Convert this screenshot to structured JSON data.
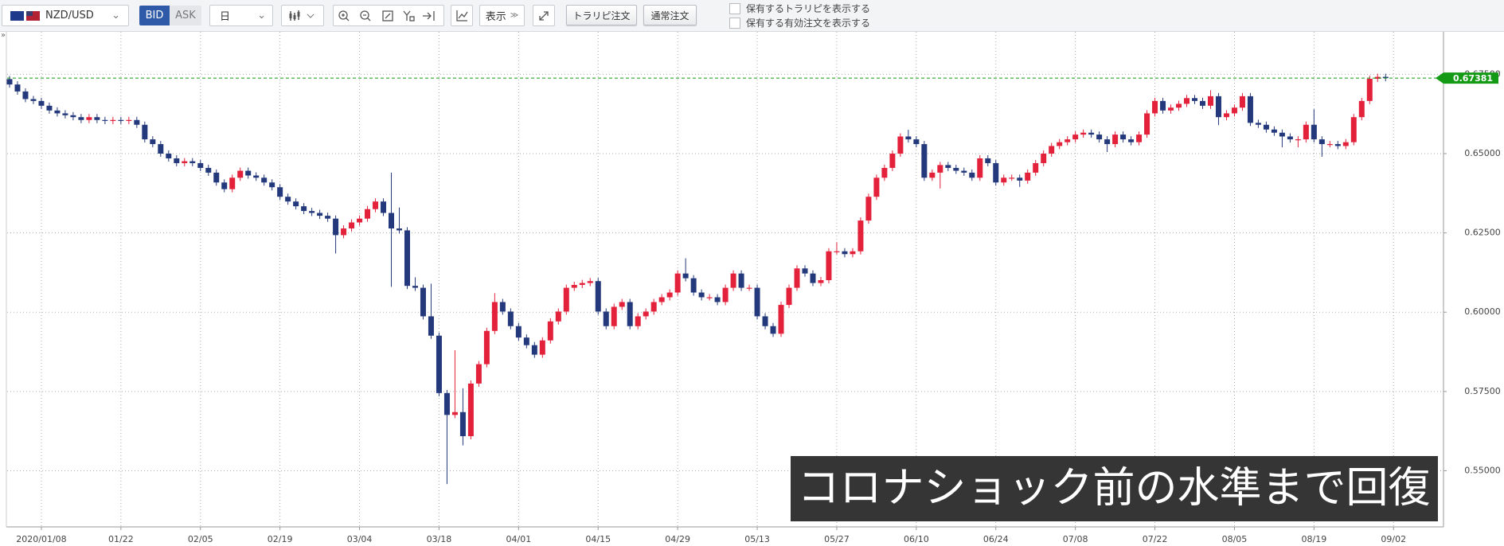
{
  "toolbar": {
    "symbol": "NZD/USD",
    "bid": "BID",
    "ask": "ASK",
    "timeframe": "日",
    "display": "表示",
    "trarepi_order": "トラリピ注文",
    "normal_order": "通常注文",
    "checkbox_1": "保有するトラリピを表示する",
    "checkbox_2": "保有する有効注文を表示する"
  },
  "sidebar_toggle": "»",
  "chart_data": {
    "type": "candlestick",
    "annotation": "コロナショック前の水準まで回復",
    "up_color": "#e3213b",
    "down_color": "#24397c",
    "grid": true,
    "last_price": 0.67381,
    "last_price_color": "#149a14",
    "ylim": [
      0.5328,
      0.6884
    ],
    "yticks": [
      {
        "value": 0.55,
        "label": "0.55000"
      },
      {
        "value": 0.575,
        "label": "0.57500"
      },
      {
        "value": 0.6,
        "label": "0.60000"
      },
      {
        "value": 0.625,
        "label": "0.62500"
      },
      {
        "value": 0.65,
        "label": "0.65000"
      },
      {
        "value": 0.675,
        "label": "0.67500"
      }
    ],
    "categories": [
      null,
      null,
      null,
      null,
      "2020/01/08",
      null,
      null,
      null,
      null,
      null,
      null,
      null,
      null,
      null,
      "01/22",
      null,
      null,
      null,
      null,
      null,
      null,
      null,
      null,
      null,
      "02/05",
      null,
      null,
      null,
      null,
      null,
      null,
      null,
      null,
      null,
      "02/19",
      null,
      null,
      null,
      null,
      null,
      null,
      null,
      null,
      null,
      "03/04",
      null,
      null,
      null,
      null,
      null,
      null,
      null,
      null,
      null,
      "03/18",
      null,
      null,
      null,
      null,
      null,
      null,
      null,
      null,
      null,
      "04/01",
      null,
      null,
      null,
      null,
      null,
      null,
      null,
      null,
      null,
      "04/15",
      null,
      null,
      null,
      null,
      null,
      null,
      null,
      null,
      null,
      "04/29",
      null,
      null,
      null,
      null,
      null,
      null,
      null,
      null,
      null,
      "05/13",
      null,
      null,
      null,
      null,
      null,
      null,
      null,
      null,
      null,
      "05/27",
      null,
      null,
      null,
      null,
      null,
      null,
      null,
      null,
      null,
      "06/10",
      null,
      null,
      null,
      null,
      null,
      null,
      null,
      null,
      null,
      "06/24",
      null,
      null,
      null,
      null,
      null,
      null,
      null,
      null,
      null,
      "07/08",
      null,
      null,
      null,
      null,
      null,
      null,
      null,
      null,
      null,
      "07/22",
      null,
      null,
      null,
      null,
      null,
      null,
      null,
      null,
      null,
      "08/05",
      null,
      null,
      null,
      null,
      null,
      null,
      null,
      null,
      null,
      "08/19",
      null,
      null,
      null,
      null,
      null,
      null,
      null,
      null,
      null,
      "09/02"
    ],
    "open": [
      0.6735,
      0.6718,
      0.6696,
      0.6672,
      0.6666,
      0.6651,
      0.6636,
      0.6627,
      0.6621,
      0.6615,
      0.6606,
      0.6615,
      0.6606,
      0.6603,
      0.6606,
      0.6603,
      0.6606,
      0.6591,
      0.6545,
      0.653,
      0.65,
      0.6485,
      0.647,
      0.6476,
      0.647,
      0.6455,
      0.644,
      0.6409,
      0.6388,
      0.6424,
      0.6446,
      0.6431,
      0.6424,
      0.6409,
      0.6394,
      0.6364,
      0.6349,
      0.6334,
      0.6319,
      0.6313,
      0.6304,
      0.6295,
      0.6243,
      0.6264,
      0.6283,
      0.6295,
      0.6325,
      0.6349,
      0.6313,
      0.6264,
      0.6258,
      0.6083,
      0.6077,
      0.5987,
      0.5926,
      0.5745,
      0.5676,
      0.5685,
      0.5609,
      0.5775,
      0.5836,
      0.5941,
      0.6032,
      0.6002,
      0.5956,
      0.592,
      0.5896,
      0.5866,
      0.5911,
      0.5971,
      0.6002,
      0.6077,
      0.6086,
      0.6092,
      0.6098,
      0.6002,
      0.5956,
      0.6017,
      0.6032,
      0.5956,
      0.5987,
      0.6002,
      0.6032,
      0.6047,
      0.6062,
      0.6122,
      0.6107,
      0.6062,
      0.6047,
      0.6047,
      0.6032,
      0.6077,
      0.6122,
      0.6077,
      0.6077,
      0.5987,
      0.5956,
      0.5932,
      0.6023,
      0.6077,
      0.6138,
      0.6122,
      0.6092,
      0.6101,
      0.6192,
      0.6192,
      0.6183,
      0.6192,
      0.6289,
      0.6364,
      0.6424,
      0.6455,
      0.65,
      0.6554,
      0.6545,
      0.653,
      0.6424,
      0.644,
      0.6464,
      0.6455,
      0.6446,
      0.644,
      0.6424,
      0.6485,
      0.647,
      0.6409,
      0.6424,
      0.6424,
      0.6415,
      0.644,
      0.647,
      0.65,
      0.6524,
      0.6536,
      0.6545,
      0.656,
      0.6566,
      0.656,
      0.6545,
      0.653,
      0.656,
      0.6545,
      0.6536,
      0.656,
      0.6627,
      0.6666,
      0.6636,
      0.6645,
      0.6657,
      0.6675,
      0.6666,
      0.6651,
      0.6681,
      0.6615,
      0.6627,
      0.6645,
      0.6681,
      0.6597,
      0.6591,
      0.6576,
      0.6566,
      0.6554,
      0.6545,
      0.6545,
      0.6591,
      0.6545,
      0.653,
      0.653,
      0.6524,
      0.6536,
      0.6615,
      0.6666,
      0.6736,
      0.6742,
      null
    ],
    "high": [
      0.6745,
      0.6728,
      0.6706,
      0.6682,
      0.6676,
      0.6661,
      0.6646,
      0.6637,
      0.6631,
      0.6625,
      0.6625,
      0.6625,
      0.6616,
      0.6616,
      0.6616,
      0.6616,
      0.6616,
      0.6601,
      0.6555,
      0.654,
      0.651,
      0.6495,
      0.6486,
      0.6486,
      0.648,
      0.6465,
      0.645,
      0.6419,
      0.6434,
      0.6456,
      0.6456,
      0.6441,
      0.6434,
      0.6419,
      0.6404,
      0.6374,
      0.6359,
      0.6344,
      0.6329,
      0.6323,
      0.6314,
      0.6305,
      0.6274,
      0.6293,
      0.6305,
      0.6335,
      0.6359,
      0.6359,
      0.644,
      0.633,
      0.6268,
      0.611,
      0.6087,
      0.609,
      0.5936,
      0.5755,
      0.588,
      0.576,
      0.5785,
      0.5846,
      0.5951,
      0.606,
      0.6042,
      0.6012,
      0.5966,
      0.593,
      0.5906,
      0.5921,
      0.5981,
      0.6012,
      0.6087,
      0.6096,
      0.6102,
      0.6108,
      0.6108,
      0.6012,
      0.6027,
      0.6042,
      0.6042,
      0.5997,
      0.6012,
      0.6042,
      0.6057,
      0.6072,
      0.6132,
      0.617,
      0.6117,
      0.6072,
      0.6057,
      0.6057,
      0.6087,
      0.6132,
      0.6132,
      0.6087,
      0.6087,
      0.5997,
      0.5966,
      0.6033,
      0.6087,
      0.6148,
      0.6148,
      0.6132,
      0.6111,
      0.6202,
      0.622,
      0.6202,
      0.6202,
      0.6299,
      0.6374,
      0.6434,
      0.6465,
      0.651,
      0.6564,
      0.6575,
      0.6555,
      0.654,
      0.645,
      0.6474,
      0.6474,
      0.6465,
      0.6456,
      0.645,
      0.6495,
      0.6495,
      0.648,
      0.6434,
      0.6434,
      0.6434,
      0.645,
      0.648,
      0.651,
      0.6534,
      0.6546,
      0.6555,
      0.657,
      0.6576,
      0.6576,
      0.657,
      0.6555,
      0.657,
      0.657,
      0.6555,
      0.657,
      0.6637,
      0.6676,
      0.6676,
      0.6655,
      0.6667,
      0.6685,
      0.6685,
      0.6676,
      0.67,
      0.6691,
      0.6637,
      0.6655,
      0.6691,
      0.6691,
      0.6607,
      0.6601,
      0.6586,
      0.6576,
      0.6564,
      0.6555,
      0.6601,
      0.664,
      0.6555,
      0.654,
      0.654,
      0.6546,
      0.6625,
      0.6676,
      0.6746,
      0.6752,
      0.6752,
      null
    ],
    "low": [
      0.6708,
      0.6686,
      0.6662,
      0.6656,
      0.6641,
      0.6626,
      0.6617,
      0.6611,
      0.6605,
      0.6596,
      0.6596,
      0.6596,
      0.6593,
      0.6593,
      0.6593,
      0.6593,
      0.6581,
      0.6535,
      0.652,
      0.649,
      0.6475,
      0.646,
      0.646,
      0.646,
      0.6445,
      0.643,
      0.6399,
      0.6378,
      0.6378,
      0.6414,
      0.6421,
      0.6414,
      0.6399,
      0.6384,
      0.6354,
      0.6339,
      0.6324,
      0.6309,
      0.6303,
      0.6294,
      0.6285,
      0.6185,
      0.6233,
      0.6254,
      0.6273,
      0.6285,
      0.6315,
      0.6303,
      0.608,
      0.6248,
      0.6073,
      0.6067,
      0.5977,
      0.5916,
      0.5735,
      0.5458,
      0.5666,
      0.558,
      0.5599,
      0.5765,
      0.5826,
      0.5931,
      0.5992,
      0.5946,
      0.591,
      0.5886,
      0.5856,
      0.5856,
      0.5901,
      0.5961,
      0.5992,
      0.6067,
      0.6076,
      0.6082,
      0.5992,
      0.5946,
      0.5946,
      0.6007,
      0.5946,
      0.5946,
      0.5977,
      0.5992,
      0.6022,
      0.6037,
      0.6052,
      0.6097,
      0.6052,
      0.6037,
      0.6037,
      0.6022,
      0.6022,
      0.6067,
      0.6067,
      0.6067,
      0.5977,
      0.5946,
      0.5922,
      0.5922,
      0.6013,
      0.6067,
      0.6112,
      0.6082,
      0.6082,
      0.6091,
      0.6182,
      0.6173,
      0.6173,
      0.6182,
      0.6279,
      0.6354,
      0.6414,
      0.6445,
      0.649,
      0.6535,
      0.652,
      0.6414,
      0.6414,
      0.639,
      0.6445,
      0.6436,
      0.643,
      0.6414,
      0.6414,
      0.646,
      0.6399,
      0.6399,
      0.6414,
      0.6395,
      0.6405,
      0.643,
      0.646,
      0.649,
      0.6514,
      0.6526,
      0.6535,
      0.655,
      0.655,
      0.6535,
      0.6505,
      0.652,
      0.6535,
      0.6526,
      0.6526,
      0.655,
      0.6617,
      0.6626,
      0.6626,
      0.6635,
      0.6647,
      0.6656,
      0.6641,
      0.6641,
      0.659,
      0.6605,
      0.6617,
      0.6635,
      0.6587,
      0.6581,
      0.6566,
      0.6556,
      0.652,
      0.6535,
      0.652,
      0.6535,
      0.6535,
      0.649,
      0.652,
      0.6514,
      0.6514,
      0.6526,
      0.6605,
      0.6656,
      0.6726,
      0.6728,
      null
    ],
    "close": [
      0.6718,
      0.6696,
      0.6672,
      0.6666,
      0.6651,
      0.6636,
      0.6627,
      0.6621,
      0.6615,
      0.6606,
      0.6615,
      0.6606,
      0.6603,
      0.6606,
      0.6603,
      0.6606,
      0.6591,
      0.6545,
      0.653,
      0.65,
      0.6485,
      0.647,
      0.6476,
      0.647,
      0.6455,
      0.644,
      0.6409,
      0.6388,
      0.6424,
      0.6446,
      0.6431,
      0.6424,
      0.6409,
      0.6394,
      0.6364,
      0.6349,
      0.6334,
      0.6319,
      0.6313,
      0.6304,
      0.6295,
      0.6243,
      0.6264,
      0.6283,
      0.6295,
      0.6325,
      0.6349,
      0.6313,
      0.6264,
      0.6258,
      0.6083,
      0.6077,
      0.5987,
      0.5926,
      0.5745,
      0.5676,
      0.5685,
      0.5609,
      0.5775,
      0.5836,
      0.5941,
      0.6032,
      0.6002,
      0.5956,
      0.592,
      0.5896,
      0.5866,
      0.5911,
      0.5971,
      0.6002,
      0.6077,
      0.6086,
      0.6092,
      0.6098,
      0.6002,
      0.5956,
      0.6017,
      0.6032,
      0.5956,
      0.5987,
      0.6002,
      0.6032,
      0.6047,
      0.6062,
      0.6122,
      0.6107,
      0.6062,
      0.6047,
      0.6047,
      0.6032,
      0.6077,
      0.6122,
      0.6077,
      0.6077,
      0.5987,
      0.5956,
      0.5932,
      0.6023,
      0.6077,
      0.6138,
      0.6122,
      0.6092,
      0.6101,
      0.6192,
      0.6192,
      0.6183,
      0.6192,
      0.6289,
      0.6364,
      0.6424,
      0.6455,
      0.65,
      0.6554,
      0.6545,
      0.653,
      0.6424,
      0.644,
      0.6464,
      0.6455,
      0.6446,
      0.644,
      0.6424,
      0.6485,
      0.647,
      0.6409,
      0.6424,
      0.6424,
      0.6415,
      0.644,
      0.647,
      0.65,
      0.6524,
      0.6536,
      0.6545,
      0.656,
      0.6566,
      0.656,
      0.6545,
      0.653,
      0.656,
      0.6545,
      0.6536,
      0.656,
      0.6627,
      0.6666,
      0.6636,
      0.6645,
      0.6657,
      0.6675,
      0.6666,
      0.6651,
      0.6681,
      0.6615,
      0.6627,
      0.6645,
      0.6681,
      0.6597,
      0.6591,
      0.6576,
      0.6566,
      0.6554,
      0.6545,
      0.6545,
      0.6591,
      0.6545,
      0.653,
      0.653,
      0.6524,
      0.6536,
      0.6615,
      0.6666,
      0.6736,
      0.6742,
      0.6738,
      null
    ]
  }
}
